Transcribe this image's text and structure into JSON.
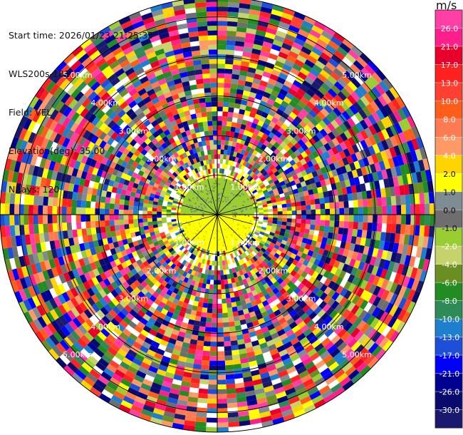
{
  "header": {
    "start_time": "Start time: 2026/01/23 21:25:35",
    "instrument": "WLS200s-181",
    "field": "Field: VEL",
    "elevation": "Elevation(deg): 35.00",
    "nrays": "NRays: 120"
  },
  "colorbar": {
    "unit": "m/s",
    "tick_labels": [
      "26.0",
      "21.0",
      "17.0",
      "13.0",
      "10.0",
      "8.0",
      "6.0",
      "4.0",
      "2.0",
      "1.0",
      "0.0",
      "-1.0",
      "-2.0",
      "-4.0",
      "-6.0",
      "-8.0",
      "-10.0",
      "-13.0",
      "-17.0",
      "-21.0",
      "-26.0",
      "-30.0"
    ],
    "colors": [
      "#ff3fa5",
      "#ff1f8c",
      "#e8002a",
      "#ff2020",
      "#ff4030",
      "#ff5e1a",
      "#ff7a50",
      "#ff9966",
      "#ffd400",
      "#ffff00",
      "#7f8c93",
      "#6e6e6e",
      "#9acd32",
      "#c6d26a",
      "#6b8e23",
      "#228b22",
      "#2e8b57",
      "#1f7fcf",
      "#1e4fd8",
      "#0000ff",
      "#000090",
      "#0a0a6e",
      "#191970"
    ]
  },
  "chart_data": {
    "type": "heatmap",
    "subtype": "ppi",
    "field": "VEL",
    "units": "m/s",
    "elevation_deg": 35.0,
    "n_rays": 120,
    "ring_labels": [
      "1.00km",
      "2.00km",
      "3.00km",
      "4.00km",
      "5.00km"
    ],
    "range_rings_km": [
      1,
      2,
      3,
      4,
      5
    ],
    "max_range_km": 5.5,
    "color_levels": [
      -30.0,
      -26.0,
      -21.0,
      -17.0,
      -13.0,
      -10.0,
      -8.0,
      -6.0,
      -4.0,
      -2.0,
      -1.0,
      0.0,
      1.0,
      2.0,
      4.0,
      6.0,
      8.0,
      10.0,
      13.0,
      17.0,
      21.0,
      26.0
    ],
    "near_field": {
      "inner_range_km": 0.93,
      "north_half_velocity": -2.0,
      "south_half_velocity": 4.0
    },
    "far_field_note": "noisy velocities spanning full scale"
  }
}
